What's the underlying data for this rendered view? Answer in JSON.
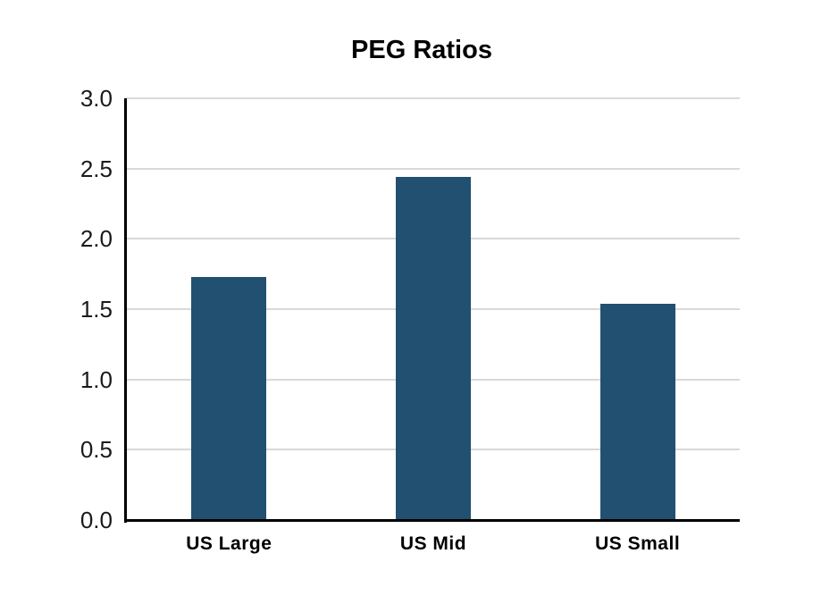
{
  "page": {
    "background_color": "#ffffff"
  },
  "chart_data": {
    "type": "bar",
    "title": "PEG Ratios",
    "categories": [
      "US Large",
      "US Mid",
      "US Small"
    ],
    "values": [
      1.73,
      2.44,
      1.54
    ],
    "xlabel": "",
    "ylabel": "",
    "ylim": [
      0.0,
      3.0
    ],
    "yticks": [
      0.0,
      0.5,
      1.0,
      1.5,
      2.0,
      2.5,
      3.0
    ],
    "ytick_labels": [
      "0.0",
      "0.5",
      "1.0",
      "1.5",
      "2.0",
      "2.5",
      "3.0"
    ],
    "grid": "horizontal-on",
    "legend": "none",
    "colors": {
      "bar_fill": "#215070",
      "gridline": "#D9D9D9",
      "axis": "#000000",
      "title_text": "#000000",
      "tick_text": "#1a1a1a"
    }
  }
}
